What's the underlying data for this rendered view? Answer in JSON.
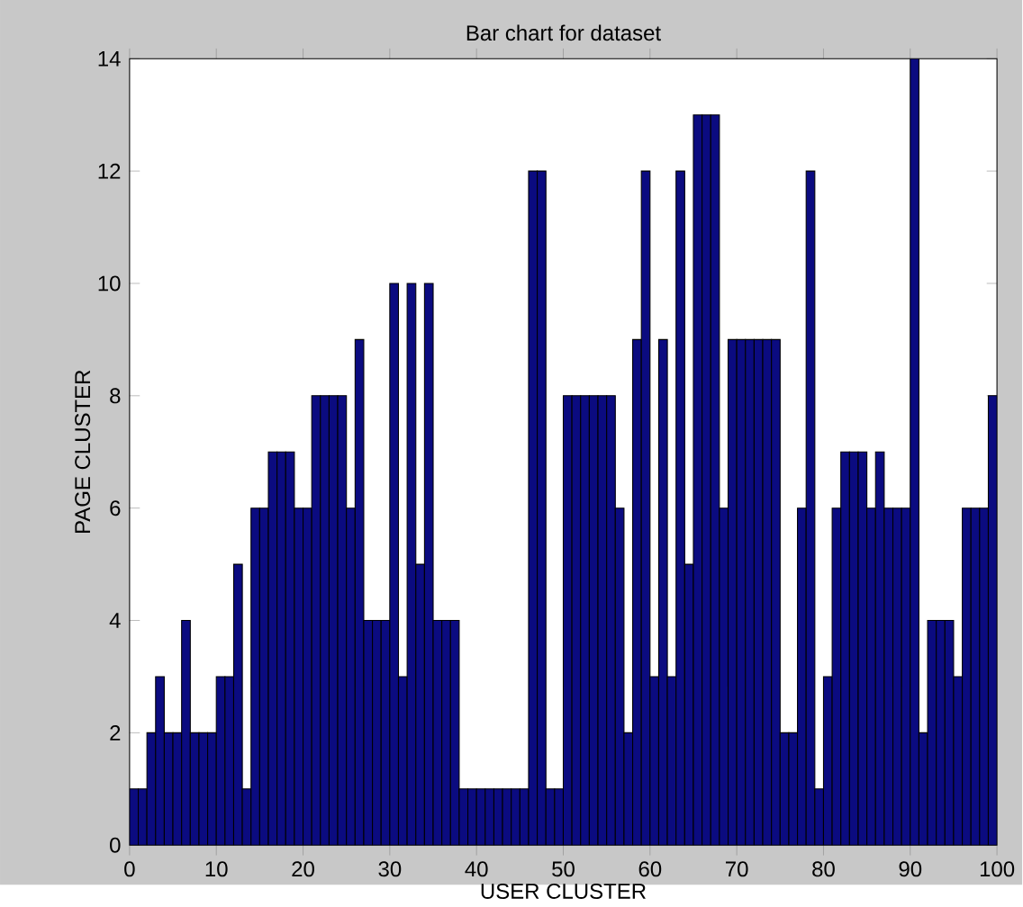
{
  "chart_data": {
    "type": "bar",
    "title": "Bar chart for dataset",
    "xlabel": "USER CLUSTER",
    "ylabel": "PAGE CLUSTER",
    "x": [
      0.5,
      1.5,
      2.5,
      3.5,
      4.5,
      5.5,
      6.5,
      7.5,
      8.5,
      9.5,
      10.5,
      11.5,
      12.5,
      13.5,
      14.5,
      15.5,
      16.5,
      17.5,
      18.5,
      19.5,
      20.5,
      21.5,
      22.5,
      23.5,
      24.5,
      25.5,
      26.5,
      27.5,
      28.5,
      29.5,
      30.5,
      31.5,
      32.5,
      33.5,
      34.5,
      35.5,
      36.5,
      37.5,
      38.5,
      39.5,
      40.5,
      41.5,
      42.5,
      43.5,
      44.5,
      45.5,
      46.5,
      47.5,
      48.5,
      49.5,
      50.5,
      51.5,
      52.5,
      53.5,
      54.5,
      55.5,
      56.5,
      57.5,
      58.5,
      59.5,
      60.5,
      61.5,
      62.5,
      63.5,
      64.5,
      65.5,
      66.5,
      67.5,
      68.5,
      69.5,
      70.5,
      71.5,
      72.5,
      73.5,
      74.5,
      75.5,
      76.5,
      77.5,
      78.5,
      79.5,
      80.5,
      81.5,
      82.5,
      83.5,
      84.5,
      85.5,
      86.5,
      87.5,
      88.5,
      89.5,
      90.5,
      91.5,
      92.5,
      93.5,
      94.5,
      95.5,
      96.5,
      97.5,
      98.5,
      99.5
    ],
    "values": [
      1,
      1,
      2,
      3,
      2,
      2,
      4,
      2,
      2,
      2,
      3,
      3,
      5,
      1,
      6,
      6,
      7,
      7,
      7,
      6,
      6,
      8,
      8,
      8,
      8,
      6,
      9,
      4,
      4,
      4,
      10,
      3,
      10,
      5,
      10,
      4,
      4,
      4,
      1,
      1,
      1,
      1,
      1,
      1,
      1,
      1,
      12,
      12,
      1,
      1,
      8,
      8,
      8,
      8,
      8,
      8,
      6,
      2,
      9,
      12,
      3,
      9,
      3,
      12,
      5,
      13,
      13,
      13,
      6,
      9,
      9,
      9,
      9,
      9,
      9,
      2,
      2,
      6,
      12,
      1,
      3,
      6,
      7,
      7,
      7,
      6,
      7,
      6,
      6,
      6,
      14,
      2,
      4,
      4,
      4,
      3,
      6,
      6,
      6,
      8
    ],
    "color": "#0b0b80",
    "xlim": [
      0,
      100
    ],
    "xticks": [
      0,
      10,
      20,
      30,
      40,
      50,
      60,
      70,
      80,
      90,
      100
    ],
    "ylim": [
      0,
      14
    ],
    "yticks": [
      0,
      2,
      4,
      6,
      8,
      10,
      12,
      14
    ]
  }
}
